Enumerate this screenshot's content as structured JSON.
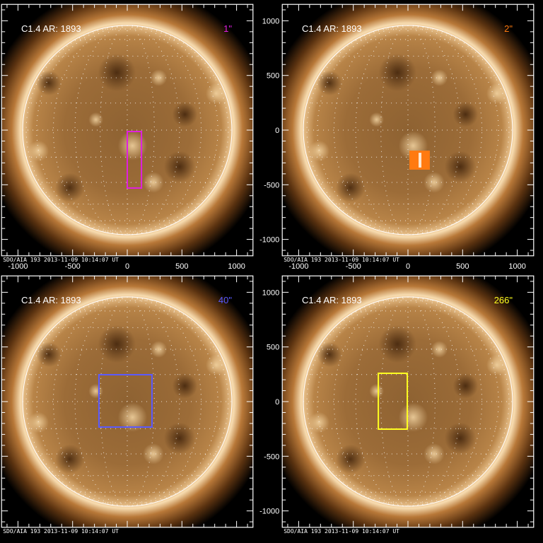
{
  "figure": {
    "footer": "SDO/AIA 193   2013-11-09 10:14:07 UT",
    "axis_range_arcsec": [
      -1150,
      1150
    ],
    "tick_labels": [
      "-1000",
      "-500",
      "0",
      "500",
      "1000"
    ],
    "solar_radius_arcsec": 957,
    "panels": [
      {
        "title": "C1.4 AR: 1893",
        "tag": "1\"",
        "color": "#e020e0",
        "box": {
          "x": [
            0,
            130
          ],
          "y": [
            -530,
            -13
          ]
        },
        "filled": false,
        "show_x_ticks": true,
        "show_y_ticks": false
      },
      {
        "title": "C1.4 AR: 1893",
        "tag": "2\"",
        "color": "#ff7a10",
        "box": {
          "x": [
            13,
            200
          ],
          "y": [
            -362,
            -188
          ]
        },
        "filled": true,
        "show_x_ticks": true,
        "show_y_ticks": true
      },
      {
        "title": "C1.4 AR: 1893",
        "tag": "40\"",
        "color": "#5a5aff",
        "box": {
          "x": [
            -259,
            226
          ],
          "y": [
            -233,
            246
          ]
        },
        "filled": false,
        "show_x_ticks": false,
        "show_y_ticks": false
      },
      {
        "title": "C1.4 AR: 1893",
        "tag": "266\"",
        "color": "#ffff20",
        "box": {
          "x": [
            -271,
            -6
          ],
          "y": [
            -252,
            259
          ]
        },
        "filled": false,
        "show_x_ticks": false,
        "show_y_ticks": true
      }
    ]
  }
}
